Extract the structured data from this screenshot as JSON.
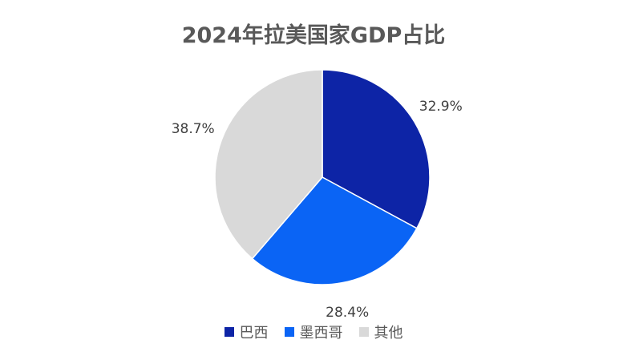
{
  "chart_data": {
    "type": "pie",
    "title": "2024年拉美国家GDP占比",
    "categories": [
      "巴西",
      "墨西哥",
      "其他"
    ],
    "values": [
      32.9,
      28.4,
      38.7
    ],
    "labels": [
      "32.9%",
      "28.4%",
      "38.7%"
    ],
    "colors": [
      "#0D24A6",
      "#0A64F5",
      "#D9D9D9"
    ],
    "legend": "bottom"
  }
}
